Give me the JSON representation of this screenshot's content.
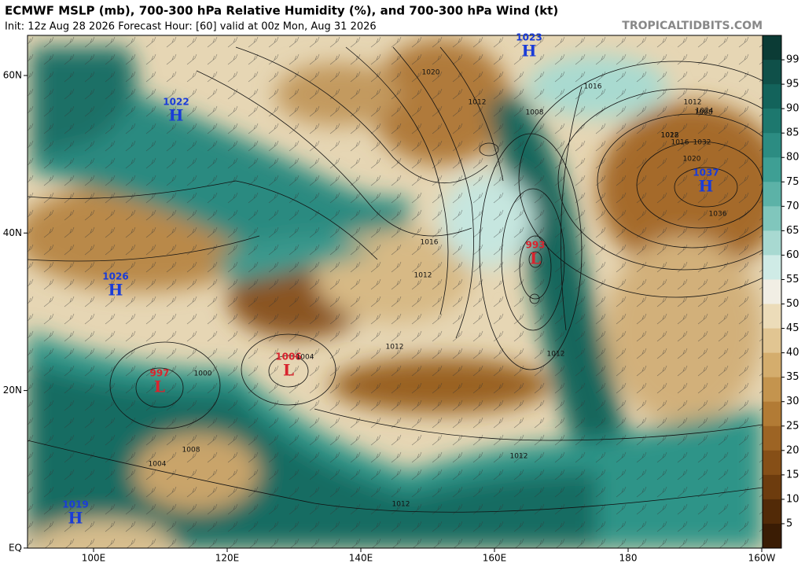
{
  "header": {
    "title": "ECMWF MSLP (mb), 700-300 hPa Relative Humidity (%), and 700-300 hPa Wind (kt)",
    "subtitle": "Init: 12z Aug 28 2026   Forecast Hour: [60]   valid at 00z Mon, Aug 31 2026",
    "credit": "TROPICALTIDBITS.COM"
  },
  "lon_labels": [
    "100E",
    "120E",
    "140E",
    "160E",
    "180",
    "160W"
  ],
  "lat_labels": [
    "60N",
    "40N",
    "20N",
    "EQ"
  ],
  "colorbar": {
    "ticks": [
      99,
      95,
      90,
      85,
      80,
      75,
      70,
      65,
      60,
      55,
      50,
      45,
      40,
      35,
      30,
      25,
      20,
      15,
      10,
      5
    ]
  },
  "centers": [
    {
      "letter": "H",
      "value": "1023"
    },
    {
      "letter": "H",
      "value": "1022"
    },
    {
      "letter": "H",
      "value": "1037"
    },
    {
      "letter": "H",
      "value": "1026"
    },
    {
      "letter": "L",
      "value": "993"
    },
    {
      "letter": "L",
      "value": "1006"
    },
    {
      "letter": "L",
      "value": "997"
    },
    {
      "letter": "H",
      "value": "1019"
    }
  ],
  "isobar_labels": [
    "1020",
    "1016",
    "1012",
    "1008",
    "1012",
    "1016",
    "1020",
    "1024",
    "1028",
    "1032",
    "1036",
    "1012",
    "1008",
    "1012",
    "1016",
    "1004",
    "1000",
    "1012",
    "1012",
    "1012",
    "1004",
    "1008",
    "1012"
  ]
}
